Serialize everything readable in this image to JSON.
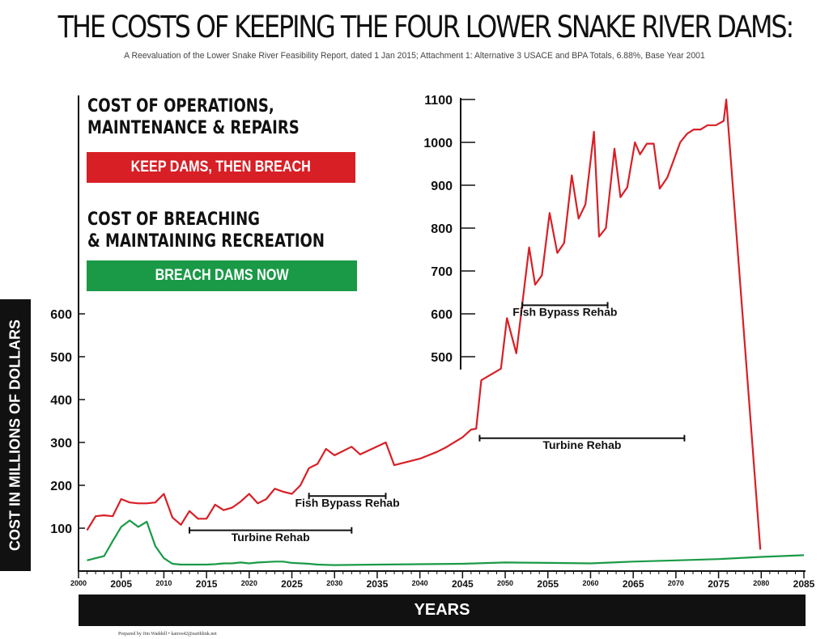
{
  "title": "THE COSTS OF KEEPING THE FOUR LOWER SNAKE RIVER DAMS:",
  "subtitle": "A Reevaluation of the Lower Snake River Feasibility Report, dated 1 Jan 2015; Attachment 1: Alternative 3 USACE and BPA Totals, 6.88%, Base Year 2001",
  "legend": {
    "keep_heading_line1": "COST OF OPERATIONS,",
    "keep_heading_line2": "MAINTENANCE & REPAIRS",
    "keep_label": "KEEP DAMS, THEN BREACH",
    "breach_heading_line1": "COST OF BREACHING",
    "breach_heading_line2": "& MAINTAINING RECREATION",
    "breach_label": "BREACH DAMS NOW"
  },
  "xaxis_label": "YEARS",
  "yaxis_label": "COST IN MILLIONS OF DOLLARS",
  "credit": "Prepared by Jim Waddell • kairos42@earthlink.net",
  "colors": {
    "keep": "#d81f26",
    "breach": "#1a9a46",
    "text": "#111111"
  },
  "chart_data": {
    "type": "line",
    "title": "THE COSTS OF KEEPING THE FOUR LOWER SNAKE RIVER DAMS:",
    "xlabel": "YEARS",
    "ylabel": "COST IN MILLIONS OF DOLLARS",
    "xlim": [
      2000,
      2085
    ],
    "ylim": [
      0,
      1100
    ],
    "grid": false,
    "x_ticks": [
      2000,
      2005,
      2010,
      2015,
      2020,
      2025,
      2030,
      2035,
      2040,
      2045,
      2050,
      2055,
      2060,
      2065,
      2070,
      2075,
      2080,
      2085
    ],
    "x_tick_labels": [
      "2000",
      "2005",
      "2010",
      "2015",
      "2020",
      "2025",
      "2030",
      "2035",
      "2040",
      "2045",
      "2050",
      "2055",
      "2060",
      "2065",
      "2070",
      "2075",
      "2080",
      "2085"
    ],
    "y_ticks_lower": [
      100,
      200,
      300,
      400,
      500,
      600
    ],
    "y_ticks_lower_labels": [
      "100",
      "200",
      "300",
      "400",
      "500",
      "600"
    ],
    "y_ticks_upper": [
      500,
      600,
      700,
      800,
      900,
      1000,
      1100
    ],
    "y_ticks_upper_labels": [
      "500",
      "600",
      "700",
      "800",
      "900",
      "1000",
      "1100"
    ],
    "series": [
      {
        "name": "KEEP DAMS, THEN BREACH",
        "color": "#d81f26",
        "points": [
          [
            2001,
            95
          ],
          [
            2002,
            128
          ],
          [
            2003,
            130
          ],
          [
            2004,
            128
          ],
          [
            2005,
            168
          ],
          [
            2006,
            160
          ],
          [
            2007,
            158
          ],
          [
            2008,
            158
          ],
          [
            2009,
            160
          ],
          [
            2010,
            180
          ],
          [
            2011,
            125
          ],
          [
            2012,
            108
          ],
          [
            2013,
            140
          ],
          [
            2014,
            122
          ],
          [
            2015,
            122
          ],
          [
            2016,
            155
          ],
          [
            2017,
            142
          ],
          [
            2018,
            148
          ],
          [
            2019,
            162
          ],
          [
            2020,
            180
          ],
          [
            2021,
            158
          ],
          [
            2022,
            168
          ],
          [
            2023,
            192
          ],
          [
            2024,
            185
          ],
          [
            2025,
            180
          ],
          [
            2026,
            200
          ],
          [
            2027,
            240
          ],
          [
            2028,
            250
          ],
          [
            2029,
            285
          ],
          [
            2030,
            270
          ],
          [
            2032,
            290
          ],
          [
            2033,
            272
          ],
          [
            2036,
            300
          ],
          [
            2037,
            247
          ],
          [
            2040,
            262
          ],
          [
            2042,
            278
          ],
          [
            2043,
            288
          ],
          [
            2045,
            312
          ],
          [
            2046,
            330
          ],
          [
            2046.6,
            332
          ],
          [
            2047.2,
            445
          ],
          [
            2049.5,
            472
          ],
          [
            2050.2,
            590
          ],
          [
            2051.3,
            508
          ],
          [
            2052,
            622
          ],
          [
            2052.8,
            755
          ],
          [
            2053.5,
            668
          ],
          [
            2054.3,
            690
          ],
          [
            2055.2,
            835
          ],
          [
            2056.1,
            742
          ],
          [
            2056.9,
            765
          ],
          [
            2057.8,
            923
          ],
          [
            2058.6,
            822
          ],
          [
            2059.4,
            855
          ],
          [
            2060.4,
            1025
          ],
          [
            2061,
            780
          ],
          [
            2061.8,
            800
          ],
          [
            2062.8,
            985
          ],
          [
            2063.5,
            872
          ],
          [
            2064.3,
            895
          ],
          [
            2065.2,
            1000
          ],
          [
            2065.8,
            972
          ],
          [
            2066.6,
            997
          ],
          [
            2067.4,
            997
          ],
          [
            2068.1,
            892
          ],
          [
            2069,
            918
          ],
          [
            2070.5,
            1000
          ],
          [
            2071.3,
            1020
          ],
          [
            2072.1,
            1030
          ],
          [
            2072.9,
            1030
          ],
          [
            2073.7,
            1040
          ],
          [
            2074.7,
            1040
          ],
          [
            2075.6,
            1050
          ],
          [
            2075.9,
            1100
          ],
          [
            2079.9,
            50
          ]
        ]
      },
      {
        "name": "BREACH DAMS NOW",
        "color": "#1a9a46",
        "points": [
          [
            2001,
            25
          ],
          [
            2002,
            30
          ],
          [
            2003,
            35
          ],
          [
            2004,
            70
          ],
          [
            2005,
            103
          ],
          [
            2006,
            118
          ],
          [
            2007,
            103
          ],
          [
            2008,
            115
          ],
          [
            2009,
            58
          ],
          [
            2010,
            30
          ],
          [
            2011,
            17
          ],
          [
            2012,
            15
          ],
          [
            2013,
            15
          ],
          [
            2015,
            15
          ],
          [
            2016,
            16
          ],
          [
            2017,
            18
          ],
          [
            2018,
            18
          ],
          [
            2019,
            20
          ],
          [
            2020,
            18
          ],
          [
            2021,
            20
          ],
          [
            2023,
            22
          ],
          [
            2024,
            22
          ],
          [
            2025,
            19
          ],
          [
            2027,
            17
          ],
          [
            2028,
            15
          ],
          [
            2030,
            14
          ],
          [
            2035,
            15
          ],
          [
            2040,
            16
          ],
          [
            2045,
            17
          ],
          [
            2050,
            20
          ],
          [
            2055,
            19
          ],
          [
            2060,
            18
          ],
          [
            2065,
            22
          ],
          [
            2070,
            25
          ],
          [
            2075,
            28
          ],
          [
            2080,
            33
          ],
          [
            2085,
            37
          ]
        ]
      }
    ],
    "annotations": [
      {
        "label": "Turbine Rehab",
        "x_start": 2013,
        "x_end": 2032,
        "y": 95,
        "label_y": 70
      },
      {
        "label": "Fish Bypass Rehab",
        "x_start": 2027,
        "x_end": 2036,
        "y": 175,
        "label_y": 150
      },
      {
        "label": "Turbine Rehab",
        "x_start": 2047,
        "x_end": 2071,
        "y": 310,
        "label_y": 285
      },
      {
        "label": "Fish Bypass Rehab",
        "x_start": 2052,
        "x_end": 2062,
        "y": 620,
        "label_y": 595
      }
    ]
  }
}
